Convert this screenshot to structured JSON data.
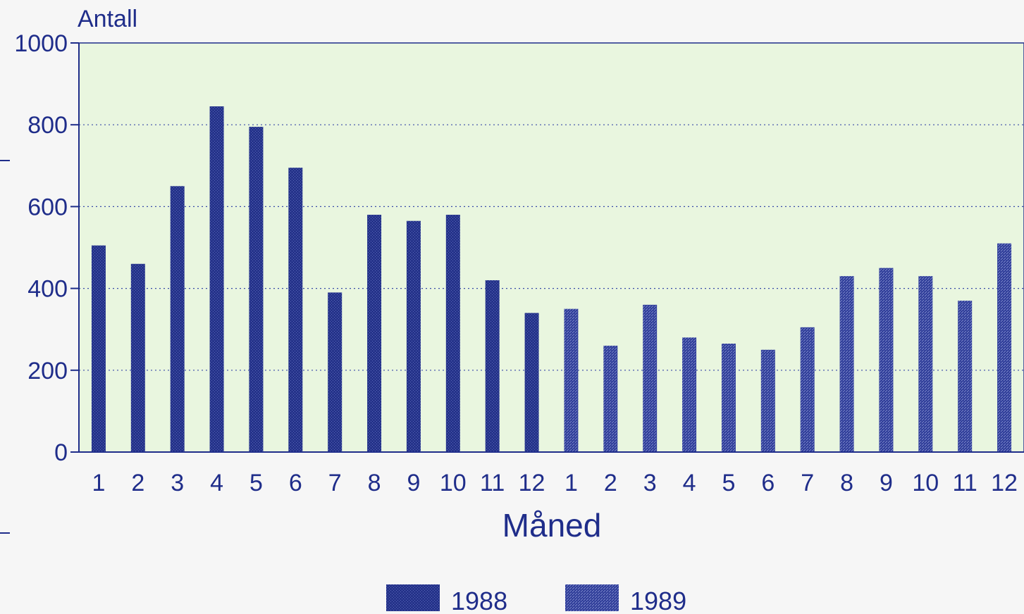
{
  "chart_data": {
    "type": "bar",
    "title": "",
    "ylabel": "Antall",
    "xlabel": "Måned",
    "ylim": [
      0,
      1000
    ],
    "yticks": [
      "0",
      "200",
      "400",
      "600",
      "800",
      "1000"
    ],
    "grid": "horizontal dotted",
    "legend_position": "bottom",
    "categories": [
      "1",
      "2",
      "3",
      "4",
      "5",
      "6",
      "7",
      "8",
      "9",
      "10",
      "11",
      "12",
      "1",
      "2",
      "3",
      "4",
      "5",
      "6",
      "7",
      "8",
      "9",
      "10",
      "11",
      "12"
    ],
    "series": [
      {
        "name": "1988",
        "color": "#27348b",
        "values": [
          505,
          460,
          650,
          845,
          795,
          695,
          390,
          580,
          565,
          580,
          420,
          340,
          null,
          null,
          null,
          null,
          null,
          null,
          null,
          null,
          null,
          null,
          null,
          null
        ]
      },
      {
        "name": "1989",
        "color": "#3a48a0",
        "values": [
          null,
          null,
          null,
          null,
          null,
          null,
          null,
          null,
          null,
          null,
          null,
          null,
          350,
          260,
          360,
          280,
          265,
          250,
          305,
          430,
          450,
          430,
          370,
          510
        ]
      }
    ],
    "colors": {
      "plot_background": "#e9f6df",
      "text": "#1f2d8a",
      "axis": "#1f2d8a"
    }
  }
}
